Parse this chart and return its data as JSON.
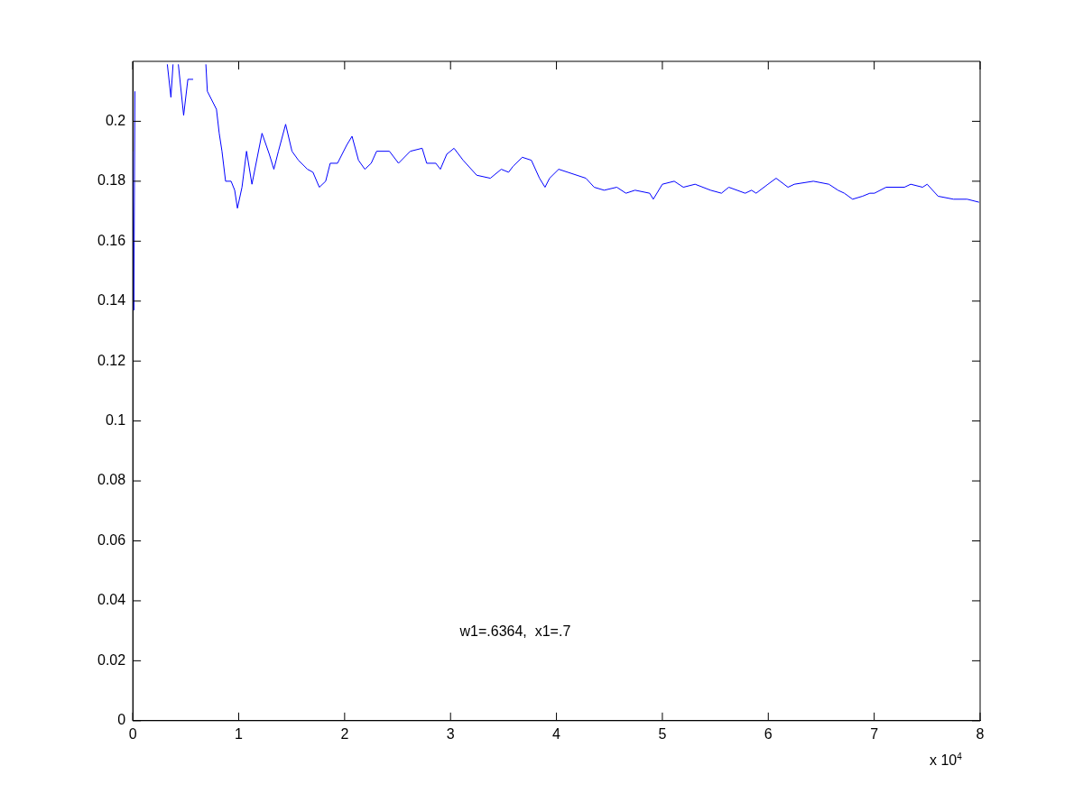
{
  "chart_data": {
    "type": "line",
    "annotations": [
      "w1=.6364,  x1=.7",
      "x 10$^{4}$"
    ],
    "xlim": [
      0,
      8
    ],
    "xticks": [
      0,
      1,
      2,
      3,
      4,
      5,
      6,
      7,
      8
    ],
    "ylim": [
      0,
      0.22
    ],
    "yticks": [
      0,
      0.02,
      0.04,
      0.06,
      0.08,
      0.1,
      0.12,
      0.14,
      0.16,
      0.18,
      0.2
    ],
    "grid": false,
    "legend": false,
    "marker": "none",
    "line_style": "solid",
    "series": [
      {
        "color": "#0000ff",
        "x": [
          0,
          0.01,
          0.02,
          0.03,
          0.31,
          0.326,
          0.36,
          0.38,
          0.4,
          0.42,
          0.43,
          0.48,
          0.52,
          0.57,
          0.6,
          0.68,
          0.69,
          0.704,
          0.79,
          0.816,
          0.842,
          0.876,
          0.928,
          0.962,
          0.988,
          1.031,
          1.074,
          1.125,
          1.22,
          1.289,
          1.332,
          1.375,
          1.443,
          1.503,
          1.564,
          1.649,
          1.701,
          1.761,
          1.821,
          1.864,
          1.933,
          2.019,
          2.07,
          2.131,
          2.191,
          2.251,
          2.302,
          2.423,
          2.509,
          2.62,
          2.732,
          2.775,
          2.861,
          2.904,
          2.964,
          3.033,
          3.119,
          3.247,
          3.376,
          3.479,
          3.548,
          3.591,
          3.677,
          3.763,
          3.84,
          3.892,
          3.935,
          4.021,
          4.107,
          4.278,
          4.356,
          4.45,
          4.57,
          4.656,
          4.742,
          4.88,
          4.914,
          5,
          5.112,
          5.198,
          5.309,
          5.455,
          5.558,
          5.627,
          5.782,
          5.842,
          5.885,
          5.997,
          6.074,
          6.186,
          6.246,
          6.426,
          6.572,
          6.658,
          6.718,
          6.796,
          6.89,
          6.959,
          7.002,
          7.113,
          7.285,
          7.345,
          7.457,
          7.5,
          7.603,
          7.749,
          7.878,
          7.99
        ],
        "values": [
          0.19,
          0.137,
          0.21,
          null,
          null,
          0.219,
          0.208,
          0.219,
          null,
          null,
          0.219,
          0.202,
          0.214,
          0.214,
          null,
          null,
          0.219,
          0.21,
          0.204,
          0.196,
          0.19,
          0.18,
          0.18,
          0.177,
          0.171,
          0.178,
          0.19,
          0.179,
          0.196,
          0.189,
          0.184,
          0.19,
          0.199,
          0.19,
          0.187,
          0.184,
          0.183,
          0.178,
          0.18,
          0.186,
          0.186,
          0.192,
          0.195,
          0.187,
          0.184,
          0.186,
          0.19,
          0.19,
          0.186,
          0.19,
          0.191,
          0.186,
          0.186,
          0.184,
          0.189,
          0.191,
          0.187,
          0.182,
          0.181,
          0.184,
          0.183,
          0.185,
          0.188,
          0.187,
          0.181,
          0.178,
          0.181,
          0.184,
          0.183,
          0.181,
          0.178,
          0.177,
          0.178,
          0.176,
          0.177,
          0.176,
          0.174,
          0.179,
          0.18,
          0.178,
          0.179,
          0.177,
          0.176,
          0.178,
          0.176,
          0.177,
          0.176,
          0.179,
          0.181,
          0.178,
          0.179,
          0.18,
          0.179,
          0.177,
          0.176,
          0.174,
          0.175,
          0.176,
          0.176,
          0.178,
          0.178,
          0.179,
          0.178,
          0.179,
          0.175,
          0.174,
          0.174,
          0.173
        ]
      }
    ]
  }
}
